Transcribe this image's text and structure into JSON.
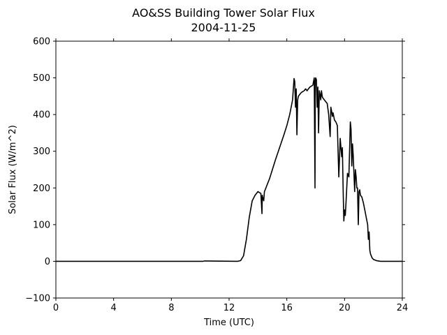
{
  "chart_data": {
    "type": "line",
    "title": "AO&SS Building Tower Solar Flux",
    "subtitle": "2004-11-25",
    "xlabel": "Time (UTC)",
    "ylabel": "Solar Flux (W/m^2)",
    "xlim": [
      0,
      24
    ],
    "ylim": [
      -100,
      600
    ],
    "xticks": [
      0,
      4,
      8,
      12,
      16,
      20,
      24
    ],
    "xtick_labels": [
      "0",
      "4",
      "8",
      "12",
      "16",
      "20",
      "24"
    ],
    "yticks": [
      -100,
      0,
      100,
      200,
      300,
      400,
      500,
      600
    ],
    "ytick_labels": [
      "−100",
      "0",
      "100",
      "200",
      "300",
      "400",
      "500",
      "600"
    ],
    "grid": false,
    "series_color": "#000000",
    "x": [
      0,
      10.2,
      10.3,
      12.6,
      12.8,
      13.0,
      13.2,
      13.4,
      13.6,
      13.8,
      14.0,
      14.2,
      14.28,
      14.3,
      14.32,
      14.4,
      14.45,
      14.5,
      14.6,
      14.8,
      15.0,
      15.2,
      15.5,
      15.8,
      16.0,
      16.2,
      16.4,
      16.5,
      16.55,
      16.6,
      16.65,
      16.7,
      16.75,
      16.8,
      17.0,
      17.2,
      17.3,
      17.4,
      17.5,
      17.6,
      17.8,
      17.9,
      17.95,
      17.97,
      18.0,
      18.05,
      18.1,
      18.15,
      18.2,
      18.25,
      18.3,
      18.35,
      18.4,
      18.45,
      18.5,
      18.6,
      18.8,
      18.9,
      19.0,
      19.05,
      19.1,
      19.15,
      19.2,
      19.3,
      19.4,
      19.5,
      19.6,
      19.7,
      19.8,
      19.85,
      19.9,
      19.95,
      20.0,
      20.05,
      20.1,
      20.2,
      20.3,
      20.4,
      20.45,
      20.5,
      20.55,
      20.6,
      20.7,
      20.75,
      20.8,
      20.85,
      20.9,
      20.95,
      21.0,
      21.05,
      21.1,
      21.2,
      21.3,
      21.4,
      21.5,
      21.6,
      21.65,
      21.7,
      21.75,
      21.8,
      21.9,
      22.0,
      22.2,
      22.5,
      23.0,
      24.0
    ],
    "values": [
      0,
      0,
      1,
      0,
      2,
      15,
      60,
      120,
      165,
      180,
      190,
      185,
      130,
      180,
      175,
      165,
      190,
      195,
      205,
      225,
      250,
      275,
      310,
      345,
      370,
      400,
      440,
      498,
      490,
      420,
      470,
      345,
      440,
      450,
      460,
      465,
      470,
      465,
      470,
      475,
      480,
      500,
      200,
      490,
      500,
      495,
      420,
      475,
      350,
      465,
      455,
      440,
      465,
      450,
      445,
      440,
      430,
      400,
      340,
      420,
      410,
      395,
      405,
      385,
      380,
      370,
      230,
      335,
      285,
      310,
      195,
      110,
      140,
      125,
      160,
      240,
      230,
      380,
      360,
      260,
      320,
      290,
      190,
      250,
      230,
      200,
      200,
      100,
      190,
      195,
      180,
      175,
      160,
      140,
      120,
      100,
      60,
      80,
      30,
      20,
      10,
      5,
      2,
      0,
      0,
      0
    ]
  }
}
